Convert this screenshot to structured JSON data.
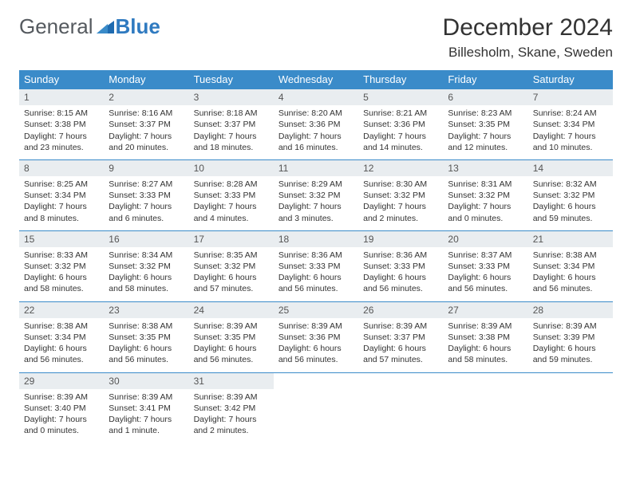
{
  "brand": {
    "part1": "General",
    "part2": "Blue"
  },
  "title": "December 2024",
  "location": "Billesholm, Skane, Sweden",
  "colors": {
    "header_bg": "#3a8bc9",
    "header_text": "#ffffff",
    "daynum_bg": "#e9edf0",
    "rule": "#3a8bc9",
    "logo_gray": "#555a5f",
    "logo_blue": "#2f7ac0"
  },
  "weekdays": [
    "Sunday",
    "Monday",
    "Tuesday",
    "Wednesday",
    "Thursday",
    "Friday",
    "Saturday"
  ],
  "days": [
    {
      "n": "1",
      "sunrise": "Sunrise: 8:15 AM",
      "sunset": "Sunset: 3:38 PM",
      "day1": "Daylight: 7 hours",
      "day2": "and 23 minutes."
    },
    {
      "n": "2",
      "sunrise": "Sunrise: 8:16 AM",
      "sunset": "Sunset: 3:37 PM",
      "day1": "Daylight: 7 hours",
      "day2": "and 20 minutes."
    },
    {
      "n": "3",
      "sunrise": "Sunrise: 8:18 AM",
      "sunset": "Sunset: 3:37 PM",
      "day1": "Daylight: 7 hours",
      "day2": "and 18 minutes."
    },
    {
      "n": "4",
      "sunrise": "Sunrise: 8:20 AM",
      "sunset": "Sunset: 3:36 PM",
      "day1": "Daylight: 7 hours",
      "day2": "and 16 minutes."
    },
    {
      "n": "5",
      "sunrise": "Sunrise: 8:21 AM",
      "sunset": "Sunset: 3:36 PM",
      "day1": "Daylight: 7 hours",
      "day2": "and 14 minutes."
    },
    {
      "n": "6",
      "sunrise": "Sunrise: 8:23 AM",
      "sunset": "Sunset: 3:35 PM",
      "day1": "Daylight: 7 hours",
      "day2": "and 12 minutes."
    },
    {
      "n": "7",
      "sunrise": "Sunrise: 8:24 AM",
      "sunset": "Sunset: 3:34 PM",
      "day1": "Daylight: 7 hours",
      "day2": "and 10 minutes."
    },
    {
      "n": "8",
      "sunrise": "Sunrise: 8:25 AM",
      "sunset": "Sunset: 3:34 PM",
      "day1": "Daylight: 7 hours",
      "day2": "and 8 minutes."
    },
    {
      "n": "9",
      "sunrise": "Sunrise: 8:27 AM",
      "sunset": "Sunset: 3:33 PM",
      "day1": "Daylight: 7 hours",
      "day2": "and 6 minutes."
    },
    {
      "n": "10",
      "sunrise": "Sunrise: 8:28 AM",
      "sunset": "Sunset: 3:33 PM",
      "day1": "Daylight: 7 hours",
      "day2": "and 4 minutes."
    },
    {
      "n": "11",
      "sunrise": "Sunrise: 8:29 AM",
      "sunset": "Sunset: 3:32 PM",
      "day1": "Daylight: 7 hours",
      "day2": "and 3 minutes."
    },
    {
      "n": "12",
      "sunrise": "Sunrise: 8:30 AM",
      "sunset": "Sunset: 3:32 PM",
      "day1": "Daylight: 7 hours",
      "day2": "and 2 minutes."
    },
    {
      "n": "13",
      "sunrise": "Sunrise: 8:31 AM",
      "sunset": "Sunset: 3:32 PM",
      "day1": "Daylight: 7 hours",
      "day2": "and 0 minutes."
    },
    {
      "n": "14",
      "sunrise": "Sunrise: 8:32 AM",
      "sunset": "Sunset: 3:32 PM",
      "day1": "Daylight: 6 hours",
      "day2": "and 59 minutes."
    },
    {
      "n": "15",
      "sunrise": "Sunrise: 8:33 AM",
      "sunset": "Sunset: 3:32 PM",
      "day1": "Daylight: 6 hours",
      "day2": "and 58 minutes."
    },
    {
      "n": "16",
      "sunrise": "Sunrise: 8:34 AM",
      "sunset": "Sunset: 3:32 PM",
      "day1": "Daylight: 6 hours",
      "day2": "and 58 minutes."
    },
    {
      "n": "17",
      "sunrise": "Sunrise: 8:35 AM",
      "sunset": "Sunset: 3:32 PM",
      "day1": "Daylight: 6 hours",
      "day2": "and 57 minutes."
    },
    {
      "n": "18",
      "sunrise": "Sunrise: 8:36 AM",
      "sunset": "Sunset: 3:33 PM",
      "day1": "Daylight: 6 hours",
      "day2": "and 56 minutes."
    },
    {
      "n": "19",
      "sunrise": "Sunrise: 8:36 AM",
      "sunset": "Sunset: 3:33 PM",
      "day1": "Daylight: 6 hours",
      "day2": "and 56 minutes."
    },
    {
      "n": "20",
      "sunrise": "Sunrise: 8:37 AM",
      "sunset": "Sunset: 3:33 PM",
      "day1": "Daylight: 6 hours",
      "day2": "and 56 minutes."
    },
    {
      "n": "21",
      "sunrise": "Sunrise: 8:38 AM",
      "sunset": "Sunset: 3:34 PM",
      "day1": "Daylight: 6 hours",
      "day2": "and 56 minutes."
    },
    {
      "n": "22",
      "sunrise": "Sunrise: 8:38 AM",
      "sunset": "Sunset: 3:34 PM",
      "day1": "Daylight: 6 hours",
      "day2": "and 56 minutes."
    },
    {
      "n": "23",
      "sunrise": "Sunrise: 8:38 AM",
      "sunset": "Sunset: 3:35 PM",
      "day1": "Daylight: 6 hours",
      "day2": "and 56 minutes."
    },
    {
      "n": "24",
      "sunrise": "Sunrise: 8:39 AM",
      "sunset": "Sunset: 3:35 PM",
      "day1": "Daylight: 6 hours",
      "day2": "and 56 minutes."
    },
    {
      "n": "25",
      "sunrise": "Sunrise: 8:39 AM",
      "sunset": "Sunset: 3:36 PM",
      "day1": "Daylight: 6 hours",
      "day2": "and 56 minutes."
    },
    {
      "n": "26",
      "sunrise": "Sunrise: 8:39 AM",
      "sunset": "Sunset: 3:37 PM",
      "day1": "Daylight: 6 hours",
      "day2": "and 57 minutes."
    },
    {
      "n": "27",
      "sunrise": "Sunrise: 8:39 AM",
      "sunset": "Sunset: 3:38 PM",
      "day1": "Daylight: 6 hours",
      "day2": "and 58 minutes."
    },
    {
      "n": "28",
      "sunrise": "Sunrise: 8:39 AM",
      "sunset": "Sunset: 3:39 PM",
      "day1": "Daylight: 6 hours",
      "day2": "and 59 minutes."
    },
    {
      "n": "29",
      "sunrise": "Sunrise: 8:39 AM",
      "sunset": "Sunset: 3:40 PM",
      "day1": "Daylight: 7 hours",
      "day2": "and 0 minutes."
    },
    {
      "n": "30",
      "sunrise": "Sunrise: 8:39 AM",
      "sunset": "Sunset: 3:41 PM",
      "day1": "Daylight: 7 hours",
      "day2": "and 1 minute."
    },
    {
      "n": "31",
      "sunrise": "Sunrise: 8:39 AM",
      "sunset": "Sunset: 3:42 PM",
      "day1": "Daylight: 7 hours",
      "day2": "and 2 minutes."
    }
  ]
}
